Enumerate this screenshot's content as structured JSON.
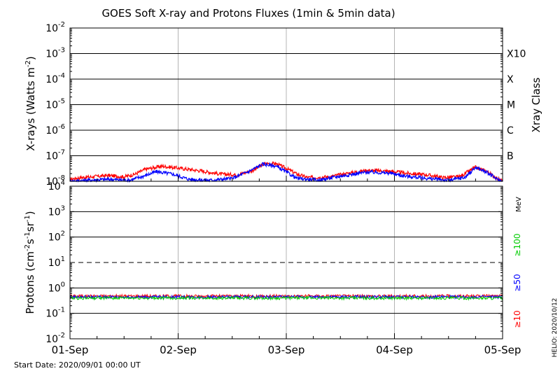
{
  "chart_data": [
    {
      "type": "line",
      "title": "GOES Soft X-ray and Protons Fluxes   (1min & 5min data)",
      "ylabel_main": "X-rays (Watts m",
      "ylabel_sup": "-2",
      "ylabel_end": ")",
      "y_scale": "log",
      "ylim": [
        1e-08,
        0.01
      ],
      "y_tick_labels": [
        {
          "exp": -8,
          "text": "10",
          "sup": "-8"
        },
        {
          "exp": -7,
          "text": "10",
          "sup": "-7"
        },
        {
          "exp": -6,
          "text": "10",
          "sup": "-6"
        },
        {
          "exp": -5,
          "text": "10",
          "sup": "-5"
        },
        {
          "exp": -4,
          "text": "10",
          "sup": "-4"
        },
        {
          "exp": -3,
          "text": "10",
          "sup": "-3"
        },
        {
          "exp": -2,
          "text": "10",
          "sup": "-2"
        }
      ],
      "right_axis_label": "Xray Class",
      "class_labels": [
        {
          "exp": -7,
          "label": "B"
        },
        {
          "exp": -6,
          "label": "C"
        },
        {
          "exp": -5,
          "label": "M"
        },
        {
          "exp": -4,
          "label": "X"
        },
        {
          "exp": -3,
          "label": "X10"
        }
      ],
      "x_tick_labels": [
        "01-Sep",
        "02-Sep",
        "03-Sep",
        "04-Sep",
        "05-Sep"
      ],
      "xlim": [
        "2020-09-01",
        "2020-09-05"
      ],
      "series": [
        {
          "color": "#ff0000",
          "points": [
            [
              0.0,
              1.2e-08
            ],
            [
              0.1,
              1.4e-08
            ],
            [
              0.2,
              1.5e-08
            ],
            [
              0.35,
              1.7e-08
            ],
            [
              0.5,
              1.5e-08
            ],
            [
              0.6,
              1.9e-08
            ],
            [
              0.7,
              3e-08
            ],
            [
              0.85,
              3.9e-08
            ],
            [
              0.95,
              3.5e-08
            ],
            [
              1.05,
              3.1e-08
            ],
            [
              1.2,
              2.6e-08
            ],
            [
              1.4,
              1.9e-08
            ],
            [
              1.55,
              1.8e-08
            ],
            [
              1.7,
              2.8e-08
            ],
            [
              1.8,
              4.9e-08
            ],
            [
              1.9,
              5e-08
            ],
            [
              2.0,
              3.2e-08
            ],
            [
              2.1,
              1.9e-08
            ],
            [
              2.2,
              1.4e-08
            ],
            [
              2.4,
              1.5e-08
            ],
            [
              2.55,
              2e-08
            ],
            [
              2.75,
              2.7e-08
            ],
            [
              2.95,
              2.5e-08
            ],
            [
              3.1,
              2.1e-08
            ],
            [
              3.3,
              1.8e-08
            ],
            [
              3.45,
              1.4e-08
            ],
            [
              3.6,
              1.5e-08
            ],
            [
              3.75,
              3.5e-08
            ],
            [
              3.85,
              2.5e-08
            ],
            [
              3.95,
              1.3e-08
            ],
            [
              4.0,
              1e-08
            ]
          ]
        },
        {
          "color": "#0000ff",
          "points": [
            [
              0.0,
              1e-08
            ],
            [
              0.15,
              1.1e-08
            ],
            [
              0.35,
              1.2e-08
            ],
            [
              0.55,
              1.1e-08
            ],
            [
              0.7,
              1.7e-08
            ],
            [
              0.8,
              2.4e-08
            ],
            [
              0.95,
              1.9e-08
            ],
            [
              1.1,
              1.2e-08
            ],
            [
              1.3,
              1.1e-08
            ],
            [
              1.5,
              1.3e-08
            ],
            [
              1.65,
              2.4e-08
            ],
            [
              1.78,
              4.7e-08
            ],
            [
              1.9,
              4e-08
            ],
            [
              2.0,
              2.3e-08
            ],
            [
              2.1,
              1.3e-08
            ],
            [
              2.3,
              1.1e-08
            ],
            [
              2.5,
              1.6e-08
            ],
            [
              2.75,
              2.3e-08
            ],
            [
              2.95,
              2.1e-08
            ],
            [
              3.1,
              1.6e-08
            ],
            [
              3.3,
              1.3e-08
            ],
            [
              3.5,
              1.1e-08
            ],
            [
              3.65,
              1.4e-08
            ],
            [
              3.75,
              3.5e-08
            ],
            [
              3.85,
              2.3e-08
            ],
            [
              3.95,
              1.2e-08
            ],
            [
              4.0,
              1e-08
            ]
          ]
        }
      ]
    },
    {
      "type": "line",
      "ylabel_main": "Protons (cm",
      "ylabel_sup1": "-2",
      "ylabel_mid1": "s",
      "ylabel_sup2": "-1",
      "ylabel_mid2": "sr",
      "ylabel_sup3": "-1",
      "ylabel_end": ")",
      "y_scale": "log",
      "ylim": [
        0.01,
        10000.0
      ],
      "y_tick_labels": [
        {
          "exp": -2,
          "text": "10",
          "sup": "-2"
        },
        {
          "exp": -1,
          "text": "10",
          "sup": "-1"
        },
        {
          "exp": 0,
          "text": "10",
          "sup": "0"
        },
        {
          "exp": 1,
          "text": "10",
          "sup": "1"
        },
        {
          "exp": 2,
          "text": "10",
          "sup": "2"
        },
        {
          "exp": 3,
          "text": "10",
          "sup": "3"
        },
        {
          "exp": 4,
          "text": "10",
          "sup": "4"
        }
      ],
      "threshold": 10,
      "right_unit": "MeV",
      "legend": [
        {
          "label": "≥100",
          "color": "#00cc00"
        },
        {
          "label": "≥50",
          "color": "#0000ff"
        },
        {
          "label": "≥10",
          "color": "#ff0000"
        }
      ],
      "series": [
        {
          "name": "≥10",
          "color": "#ff0000",
          "level": 0.48
        },
        {
          "name": "≥50",
          "color": "#0000ff",
          "level": 0.44
        },
        {
          "name": "≥100",
          "color": "#00cc00",
          "level": 0.4
        }
      ]
    }
  ],
  "footer": {
    "start_date": "Start Date: 2020/09/01 00:00 UT",
    "credit": "HELIO: 2020/10/12"
  }
}
